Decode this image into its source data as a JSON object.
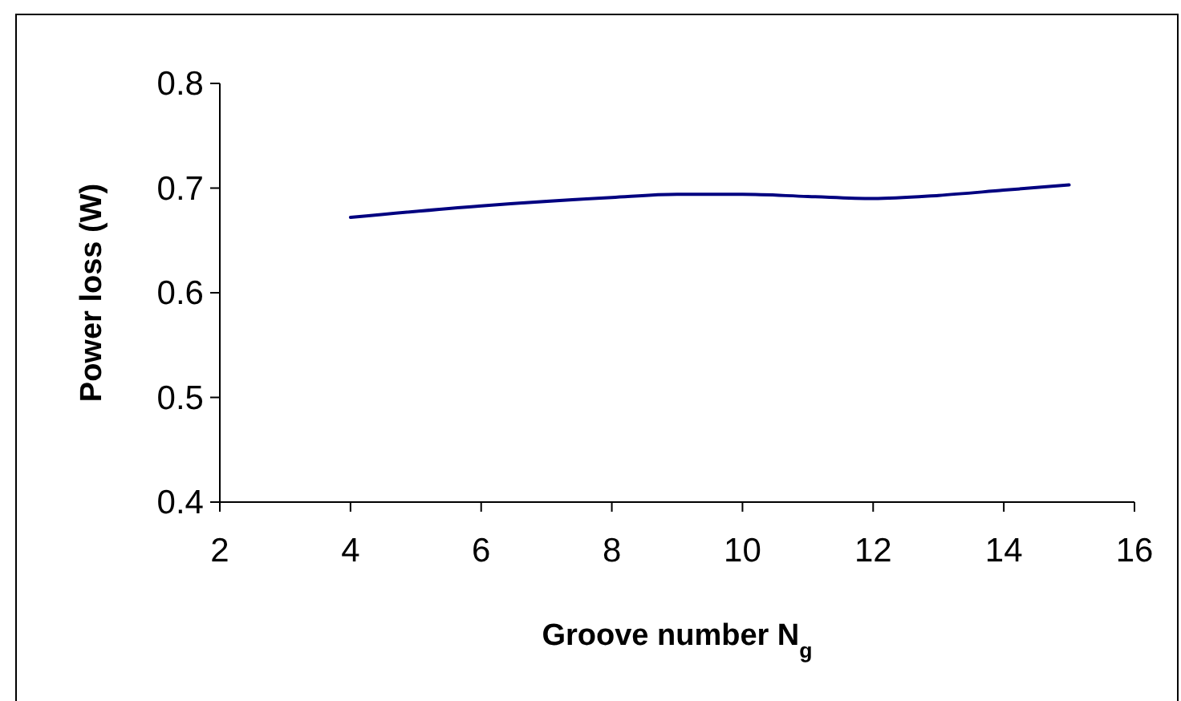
{
  "chart_data": {
    "type": "line",
    "xlabel": "Groove number N$_{g}$",
    "ylabel": "Power loss (W)",
    "x": [
      4,
      6,
      8,
      9,
      10,
      11,
      12,
      13,
      14,
      15
    ],
    "series": [
      {
        "color": "#000080",
        "values": [
          0.672,
          0.683,
          0.691,
          0.694,
          0.694,
          0.692,
          0.69,
          0.693,
          0.698,
          0.703
        ]
      }
    ],
    "xlim": [
      2,
      16
    ],
    "xticks": [
      2,
      4,
      6,
      8,
      10,
      12,
      14,
      16
    ],
    "ylim": [
      0.4,
      0.8
    ],
    "yticks": [
      0.4,
      0.5,
      0.6,
      0.7,
      0.8
    ],
    "marker": "none",
    "line_style": "solid"
  }
}
